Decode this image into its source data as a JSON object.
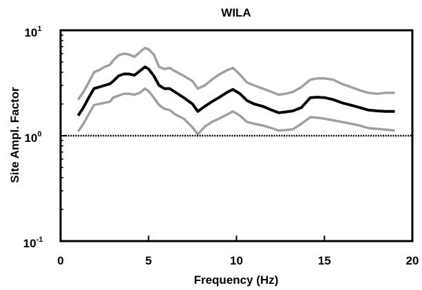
{
  "chart_data": {
    "type": "line",
    "title": "WILA",
    "xlabel": "Frequency (Hz)",
    "ylabel": "Site Ampl. Factor",
    "xlim": [
      0,
      20
    ],
    "ylim": [
      0.1,
      10
    ],
    "yscale": "log",
    "xticks": [
      "0",
      "5",
      "10",
      "15",
      "20"
    ],
    "yticks": [
      {
        "base": "10",
        "exp": "-1",
        "value": 0.1
      },
      {
        "base": "10",
        "exp": "0",
        "value": 1
      },
      {
        "base": "10",
        "exp": "1",
        "value": 10
      }
    ],
    "reference_line": {
      "y": 1,
      "style": "dotted"
    },
    "grid": false,
    "series": [
      {
        "role": "upper-bound",
        "color": "#a0a0a0",
        "x": [
          1.0,
          1.3,
          1.6,
          1.9,
          2.2,
          2.5,
          2.8,
          3.0,
          3.3,
          3.6,
          3.9,
          4.2,
          4.5,
          4.8,
          5.0,
          5.3,
          5.6,
          5.9,
          6.2,
          6.5,
          7.0,
          7.5,
          7.8,
          8.2,
          8.6,
          9.0,
          9.5,
          9.8,
          10.2,
          10.6,
          11.0,
          11.5,
          12.0,
          12.4,
          12.8,
          13.2,
          13.7,
          14.2,
          14.6,
          15.0,
          15.5,
          16.0,
          16.5,
          17.0,
          17.5,
          18.0,
          18.5,
          19.0
        ],
        "y": [
          2.2,
          2.6,
          3.2,
          4.0,
          4.2,
          4.5,
          4.7,
          5.2,
          5.8,
          6.0,
          5.9,
          5.6,
          6.2,
          6.8,
          6.6,
          5.9,
          4.5,
          4.3,
          4.4,
          4.1,
          3.7,
          3.3,
          2.8,
          3.0,
          3.4,
          3.8,
          4.2,
          4.4,
          3.8,
          3.2,
          3.0,
          2.8,
          2.6,
          2.45,
          2.5,
          2.6,
          2.9,
          3.4,
          3.5,
          3.5,
          3.4,
          3.1,
          2.9,
          2.7,
          2.55,
          2.5,
          2.55,
          2.55
        ]
      },
      {
        "role": "mean",
        "color": "#000000",
        "x": [
          1.0,
          1.3,
          1.6,
          1.9,
          2.2,
          2.5,
          2.8,
          3.0,
          3.3,
          3.6,
          3.9,
          4.2,
          4.5,
          4.8,
          5.0,
          5.3,
          5.6,
          5.9,
          6.2,
          6.5,
          7.0,
          7.5,
          7.8,
          8.2,
          8.6,
          9.0,
          9.5,
          9.8,
          10.2,
          10.6,
          11.0,
          11.5,
          12.0,
          12.4,
          12.8,
          13.2,
          13.7,
          14.2,
          14.6,
          15.0,
          15.5,
          16.0,
          16.5,
          17.0,
          17.5,
          18.0,
          18.5,
          19.0
        ],
        "y": [
          1.55,
          1.85,
          2.3,
          2.8,
          2.9,
          3.0,
          3.1,
          3.3,
          3.7,
          3.85,
          3.85,
          3.75,
          4.1,
          4.5,
          4.3,
          3.7,
          3.0,
          2.8,
          2.8,
          2.6,
          2.3,
          2.0,
          1.7,
          1.9,
          2.1,
          2.3,
          2.6,
          2.75,
          2.5,
          2.15,
          2.0,
          1.9,
          1.75,
          1.65,
          1.68,
          1.72,
          1.85,
          2.3,
          2.32,
          2.3,
          2.2,
          2.05,
          1.95,
          1.85,
          1.75,
          1.72,
          1.7,
          1.7
        ]
      },
      {
        "role": "lower-bound",
        "color": "#a0a0a0",
        "x": [
          1.0,
          1.3,
          1.6,
          1.9,
          2.2,
          2.5,
          2.8,
          3.0,
          3.3,
          3.6,
          3.9,
          4.2,
          4.5,
          4.8,
          5.0,
          5.3,
          5.6,
          5.9,
          6.2,
          6.5,
          7.0,
          7.5,
          7.8,
          8.2,
          8.6,
          9.0,
          9.5,
          9.8,
          10.2,
          10.6,
          11.0,
          11.5,
          12.0,
          12.4,
          12.8,
          13.2,
          13.7,
          14.2,
          14.6,
          15.0,
          15.5,
          16.0,
          16.5,
          17.0,
          17.5,
          18.0,
          18.5,
          19.0
        ],
        "y": [
          1.1,
          1.3,
          1.6,
          1.95,
          2.0,
          2.05,
          2.1,
          2.3,
          2.4,
          2.5,
          2.5,
          2.45,
          2.55,
          2.8,
          2.65,
          2.3,
          1.95,
          1.8,
          1.75,
          1.6,
          1.45,
          1.2,
          1.03,
          1.22,
          1.35,
          1.45,
          1.6,
          1.7,
          1.55,
          1.35,
          1.3,
          1.25,
          1.18,
          1.12,
          1.13,
          1.15,
          1.3,
          1.5,
          1.48,
          1.45,
          1.4,
          1.35,
          1.3,
          1.25,
          1.18,
          1.16,
          1.14,
          1.12
        ]
      }
    ]
  }
}
